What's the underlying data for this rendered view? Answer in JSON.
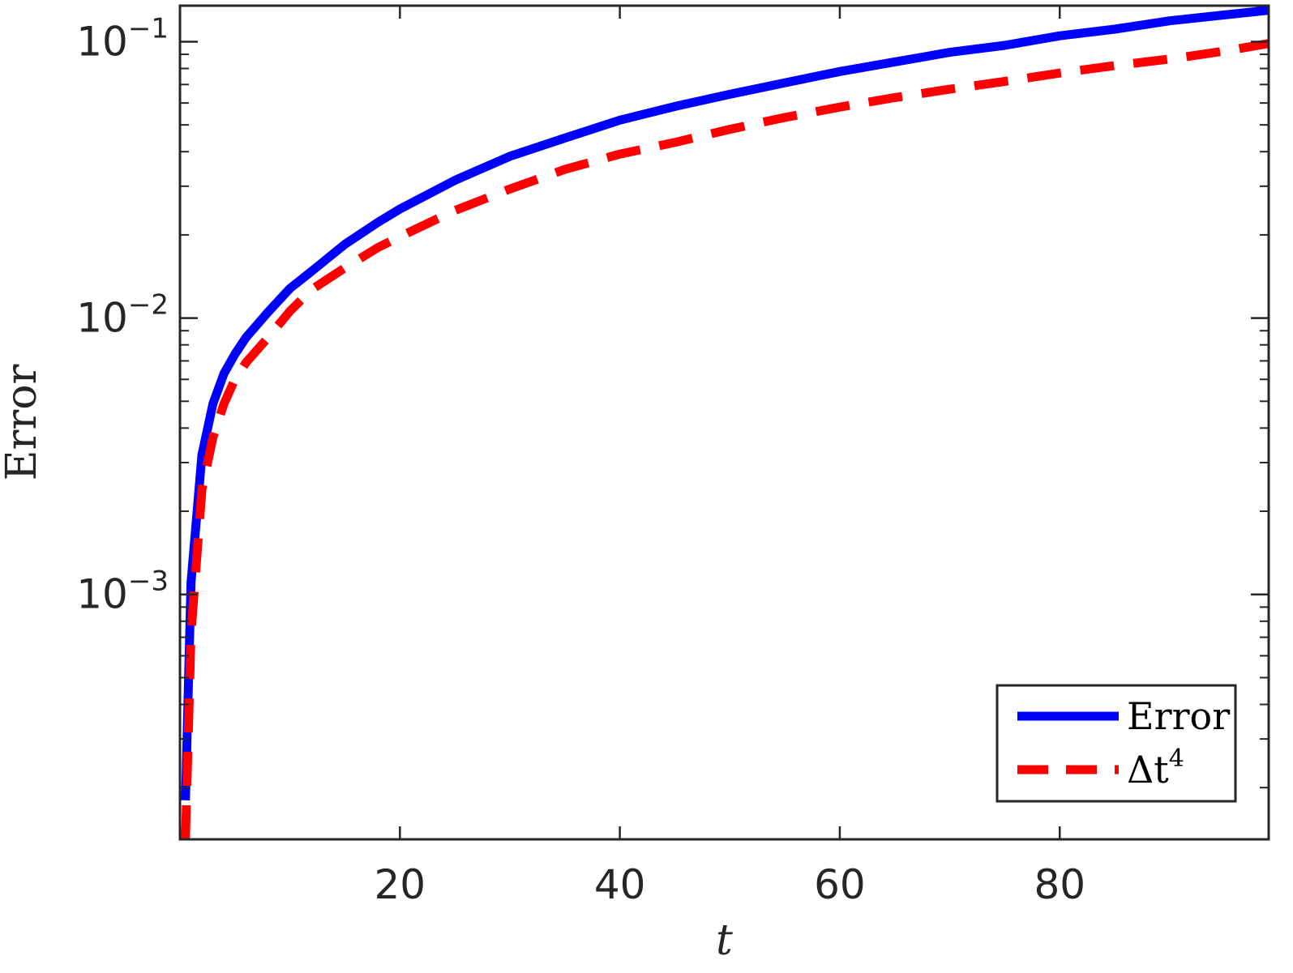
{
  "chart_data": {
    "type": "line",
    "title": "",
    "xlabel": "t",
    "ylabel": "Error",
    "yscale": "log",
    "xlim": [
      0,
      99
    ],
    "ylim": [
      0.00013,
      0.135
    ],
    "xticks": [
      20,
      40,
      60,
      80
    ],
    "yticks": [
      {
        "value": 0.001,
        "base": "10",
        "exp": "−3"
      },
      {
        "value": 0.01,
        "base": "10",
        "exp": "−2"
      },
      {
        "value": 0.1,
        "base": "10",
        "exp": "−1"
      }
    ],
    "grid": false,
    "legend_position": "bottom-right",
    "x": [
      0.5,
      1,
      2,
      3,
      4,
      5,
      6,
      8,
      10,
      12,
      15,
      18,
      20,
      25,
      30,
      35,
      40,
      45,
      50,
      55,
      60,
      65,
      70,
      75,
      80,
      85,
      90,
      95,
      99
    ],
    "series": [
      {
        "name": "Error",
        "color": "#0000ff",
        "dash": "solid",
        "values": [
          0.00018,
          0.0011,
          0.0032,
          0.0049,
          0.0063,
          0.0074,
          0.0085,
          0.0105,
          0.0128,
          0.0148,
          0.0185,
          0.0222,
          0.0248,
          0.0315,
          0.0385,
          0.0448,
          0.052,
          0.0583,
          0.0645,
          0.071,
          0.078,
          0.0845,
          0.0915,
          0.097,
          0.105,
          0.111,
          0.119,
          0.125,
          0.13
        ]
      },
      {
        "name_main": "Δt",
        "name_sup": "4",
        "color": "#ff0000",
        "dash": "dashed",
        "values": [
          0.00013,
          0.00072,
          0.0024,
          0.0037,
          0.0049,
          0.006,
          0.0069,
          0.0085,
          0.0106,
          0.0127,
          0.0152,
          0.018,
          0.0197,
          0.0245,
          0.0293,
          0.0345,
          0.0392,
          0.0432,
          0.0482,
          0.0532,
          0.058,
          0.0628,
          0.0673,
          0.0718,
          0.077,
          0.082,
          0.0865,
          0.0925,
          0.0985
        ]
      }
    ]
  }
}
